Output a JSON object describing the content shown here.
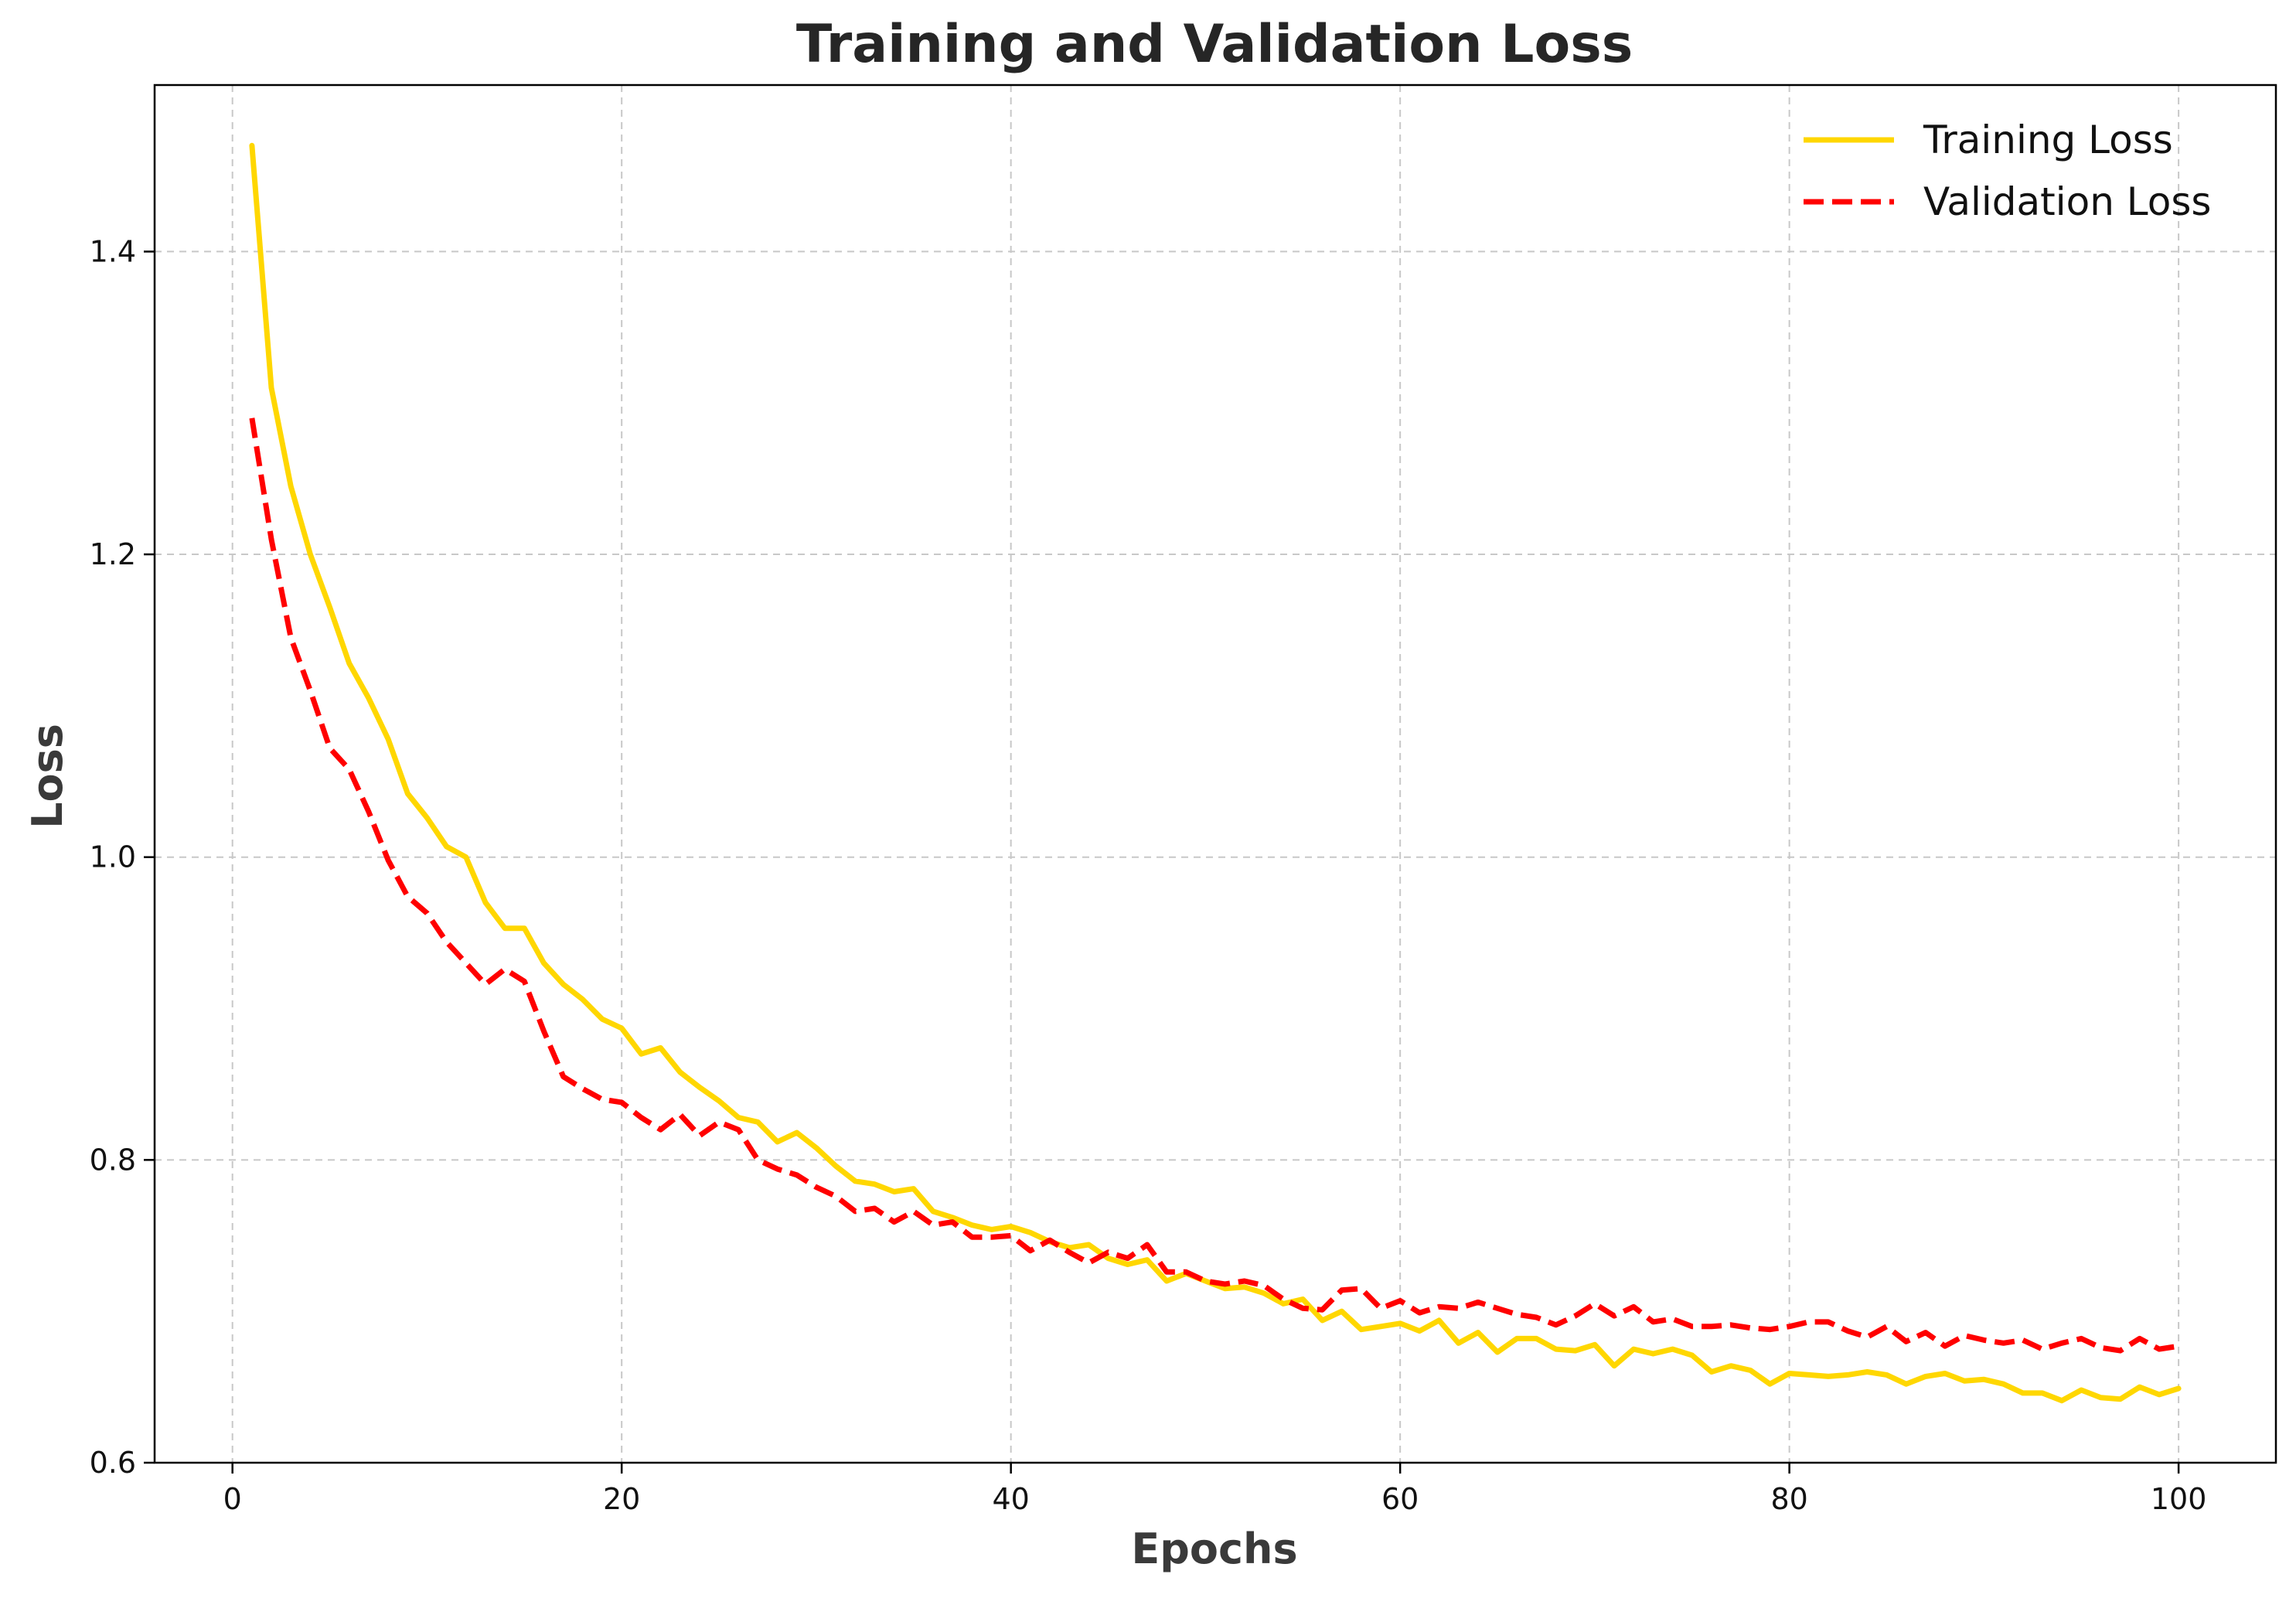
{
  "chart_data": {
    "type": "line",
    "title": "Training and Validation Loss",
    "xlabel": "Epochs",
    "ylabel": "Loss",
    "xlim": [
      -4,
      105
    ],
    "ylim": [
      0.6,
      1.51
    ],
    "xticks": [
      0,
      20,
      40,
      60,
      80,
      100
    ],
    "yticks": [
      0.6,
      0.8,
      1.0,
      1.2,
      1.4
    ],
    "xtick_labels": [
      "0",
      "20",
      "40",
      "60",
      "80",
      "100"
    ],
    "ytick_labels": [
      "0.6",
      "0.8",
      "1.0",
      "1.2",
      "1.4"
    ],
    "grid": true,
    "legend_position": "top-right",
    "x": [
      1,
      2,
      3,
      4,
      5,
      6,
      7,
      8,
      9,
      10,
      11,
      12,
      13,
      14,
      15,
      16,
      17,
      18,
      19,
      20,
      21,
      22,
      23,
      24,
      25,
      26,
      27,
      28,
      29,
      30,
      31,
      32,
      33,
      34,
      35,
      36,
      37,
      38,
      39,
      40,
      41,
      42,
      43,
      44,
      45,
      46,
      47,
      48,
      49,
      50,
      51,
      52,
      53,
      54,
      55,
      56,
      57,
      58,
      59,
      60,
      61,
      62,
      63,
      64,
      65,
      66,
      67,
      68,
      69,
      70,
      71,
      72,
      73,
      74,
      75,
      76,
      77,
      78,
      79,
      80,
      81,
      82,
      83,
      84,
      85,
      86,
      87,
      88,
      89,
      90,
      91,
      92,
      93,
      94,
      95,
      96,
      97,
      98,
      99,
      100
    ],
    "series": [
      {
        "name": "Training Loss",
        "color": "#FFD700",
        "style": "solid",
        "values": [
          1.47,
          1.31,
          1.245,
          1.2,
          1.165,
          1.128,
          1.105,
          1.078,
          1.042,
          1.026,
          1.007,
          1.0,
          0.97,
          0.953,
          0.953,
          0.93,
          0.916,
          0.906,
          0.893,
          0.887,
          0.87,
          0.874,
          0.858,
          0.848,
          0.839,
          0.828,
          0.825,
          0.812,
          0.818,
          0.808,
          0.796,
          0.786,
          0.784,
          0.779,
          0.781,
          0.766,
          0.762,
          0.757,
          0.754,
          0.756,
          0.752,
          0.746,
          0.742,
          0.744,
          0.735,
          0.731,
          0.734,
          0.72,
          0.725,
          0.72,
          0.715,
          0.716,
          0.712,
          0.705,
          0.708,
          0.694,
          0.7,
          0.688,
          0.69,
          0.692,
          0.687,
          0.694,
          0.679,
          0.686,
          0.673,
          0.682,
          0.682,
          0.675,
          0.674,
          0.678,
          0.664,
          0.675,
          0.672,
          0.675,
          0.671,
          0.66,
          0.664,
          0.661,
          0.652,
          0.659,
          0.658,
          0.657,
          0.658,
          0.66,
          0.658,
          0.652,
          0.657,
          0.659,
          0.654,
          0.655,
          0.652,
          0.646,
          0.646,
          0.641,
          0.648,
          0.643,
          0.642,
          0.65,
          0.645,
          0.649
        ]
      },
      {
        "name": "Validation Loss",
        "color": "#FF0000",
        "style": "dashed",
        "values": [
          1.29,
          1.21,
          1.145,
          1.11,
          1.072,
          1.058,
          1.03,
          0.998,
          0.974,
          0.963,
          0.944,
          0.93,
          0.916,
          0.926,
          0.918,
          0.885,
          0.855,
          0.847,
          0.84,
          0.838,
          0.828,
          0.82,
          0.83,
          0.816,
          0.825,
          0.82,
          0.8,
          0.794,
          0.79,
          0.782,
          0.776,
          0.766,
          0.768,
          0.759,
          0.766,
          0.757,
          0.759,
          0.749,
          0.749,
          0.75,
          0.74,
          0.747,
          0.739,
          0.732,
          0.739,
          0.735,
          0.744,
          0.726,
          0.726,
          0.72,
          0.718,
          0.72,
          0.717,
          0.708,
          0.702,
          0.701,
          0.714,
          0.715,
          0.702,
          0.707,
          0.699,
          0.703,
          0.702,
          0.706,
          0.702,
          0.698,
          0.696,
          0.691,
          0.697,
          0.705,
          0.697,
          0.703,
          0.693,
          0.695,
          0.69,
          0.69,
          0.691,
          0.689,
          0.688,
          0.69,
          0.693,
          0.693,
          0.687,
          0.683,
          0.69,
          0.68,
          0.686,
          0.677,
          0.684,
          0.681,
          0.679,
          0.681,
          0.675,
          0.679,
          0.682,
          0.676,
          0.674,
          0.682,
          0.675,
          0.677
        ]
      }
    ]
  }
}
